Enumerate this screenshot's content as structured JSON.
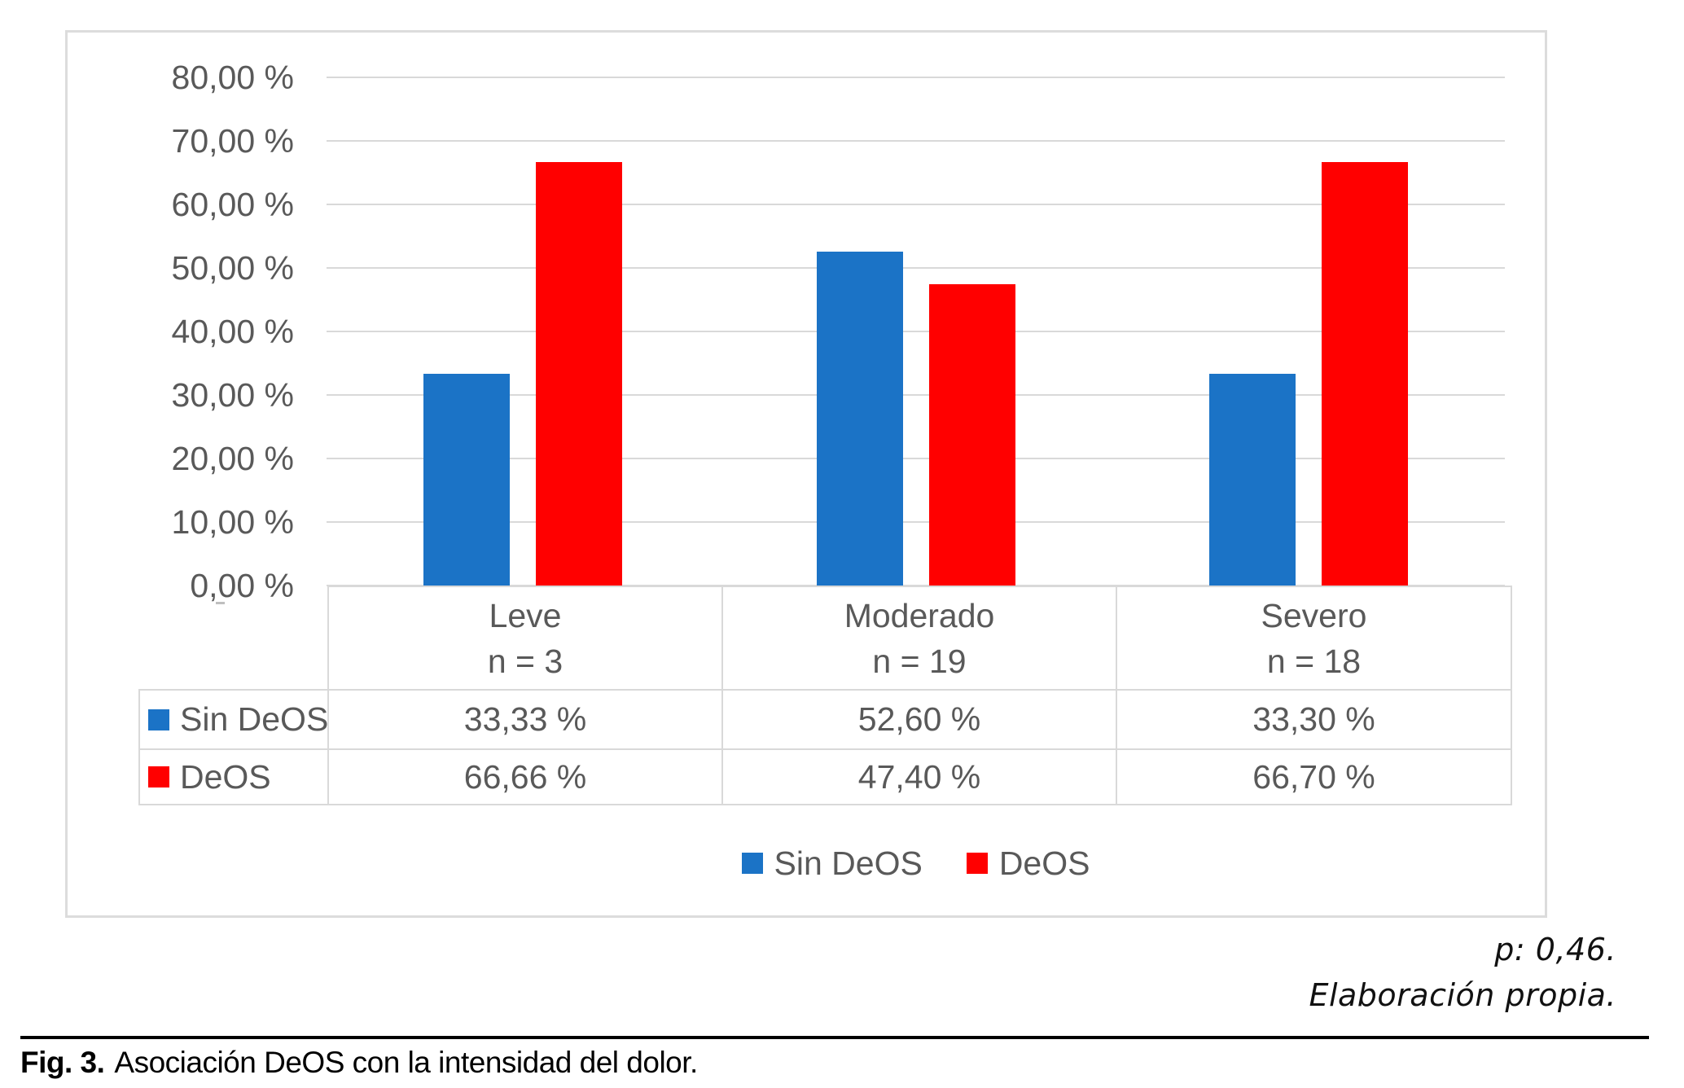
{
  "chart_data": {
    "type": "bar",
    "title": "",
    "xlabel": "",
    "ylabel": "",
    "grid": true,
    "categories": [
      {
        "label": "Leve",
        "n_label": "n = 3"
      },
      {
        "label": "Moderado",
        "n_label": "n = 19"
      },
      {
        "label": "Severo",
        "n_label": "n = 18"
      }
    ],
    "series": [
      {
        "name": "Sin DeOS",
        "color": "#1b73c6",
        "values": [
          33.33,
          52.6,
          33.3
        ],
        "display": [
          "33,33 %",
          "52,60 %",
          "33,30 %"
        ]
      },
      {
        "name": "DeOS",
        "color": "#ff0000",
        "values": [
          66.66,
          47.4,
          66.7
        ],
        "display": [
          "66,66 %",
          "47,40 %",
          "66,70 %"
        ]
      }
    ],
    "y_axis": {
      "min": 0,
      "max": 80,
      "step": 10,
      "tick_labels": [
        "80,00 %",
        "70,00 %",
        "60,00 %",
        "50,00 %",
        "40,00 %",
        "30,00 %",
        "20,00 %",
        "10,00 %",
        "0,00 %"
      ]
    },
    "legend": {
      "position": "bottom",
      "items": [
        "Sin DeOS",
        "DeOS"
      ]
    }
  },
  "annotations": {
    "p_value": "p: 0,46.",
    "source": "Elaboración propia."
  },
  "caption": {
    "prefix": "Fig. 3.",
    "text": "Asociación DeOS con la intensidad del dolor."
  },
  "colors": {
    "sin_deos": "#1b73c6",
    "deos": "#ff0000",
    "gridline": "#d9d9d9",
    "chart_text": "#595959"
  }
}
